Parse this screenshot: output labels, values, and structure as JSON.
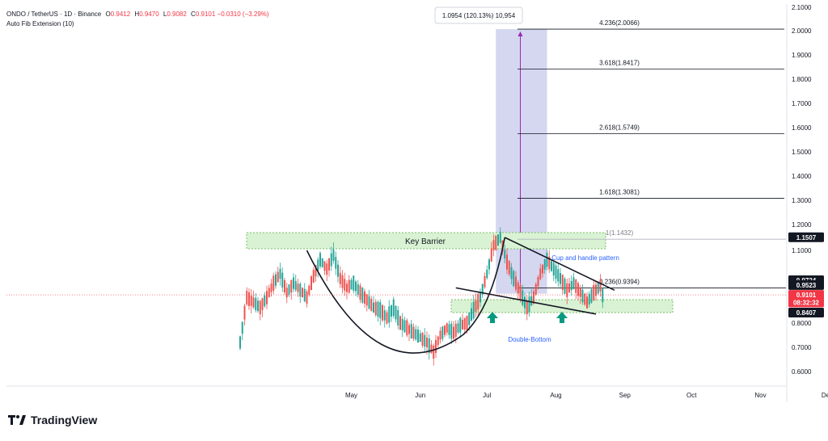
{
  "header": {
    "symbol": "ONDO / TetherUS · 1D · Binance",
    "open_label": "O",
    "open": "0.9412",
    "high_label": "H",
    "high": "0.9470",
    "low_label": "L",
    "low": "0.9082",
    "close_label": "C",
    "close": "0.9101",
    "change": "−0.0310 (−3.29%)",
    "indicator": "Auto Fib Extension (10)"
  },
  "logo": {
    "text": "TradingView"
  },
  "colors": {
    "up": "#26a69a",
    "down": "#ef5350",
    "price_label": "#f23645",
    "fib_line": "#131722",
    "zone_fill": "#d9f2d3",
    "zone_stroke": "#7bbf6a",
    "measure_fill": "#c5cae9",
    "measure_line": "#9c27b0",
    "annotation_text": "#2962ff",
    "arrow": "#089981"
  },
  "chart_data": {
    "type": "candlestick",
    "y_axis": {
      "min": 0.5,
      "max": 2.1,
      "side": "right",
      "ticks": [
        "2.1000",
        "2.0000",
        "1.9000",
        "1.8000",
        "1.7000",
        "1.6000",
        "1.5000",
        "1.4000",
        "1.3000",
        "1.2000",
        "1.1000",
        "0.8000",
        "0.7000",
        "0.6000"
      ]
    },
    "x_axis": {
      "labels": [
        {
          "text": "May",
          "day": 30
        },
        {
          "text": "Jun",
          "day": 61
        },
        {
          "text": "Jul",
          "day": 91
        },
        {
          "text": "Aug",
          "day": 122
        },
        {
          "text": "Sep",
          "day": 153
        },
        {
          "text": "Oct",
          "day": 183
        },
        {
          "text": "Nov",
          "day": 214
        },
        {
          "text": "Dec",
          "day": 244
        }
      ]
    },
    "price_labels": [
      {
        "text": "1.1507",
        "value": 1.1507,
        "style": "dark"
      },
      {
        "text": "0.9724",
        "value": 0.9724,
        "style": "dark"
      },
      {
        "text": "0.9523",
        "value": 0.9523,
        "style": "dark"
      },
      {
        "text": "0.9101",
        "value": 0.9101,
        "style": "red"
      },
      {
        "text": "08:32:32",
        "value": 0.88,
        "style": "red"
      },
      {
        "text": "0.8407",
        "value": 0.8407,
        "style": "dark"
      }
    ],
    "fib_levels": [
      {
        "label": "4.236(2.0066)",
        "value": 2.0066
      },
      {
        "label": "3.618(1.8417)",
        "value": 1.8417
      },
      {
        "label": "2.618(1.5749)",
        "value": 1.5749
      },
      {
        "label": "1.618(1.3081)",
        "value": 1.3081
      },
      {
        "label": "1(1.1432)",
        "value": 1.1432
      },
      {
        "label": "0.236(0.9394)",
        "value": 0.9394
      }
    ],
    "annotations": {
      "key_barrier": "Key Barrier",
      "cup_handle": "Cup and handle pattern",
      "double_bottom": "Double-Bottom",
      "measure": "1.0954 (120.13%) 10,954"
    },
    "candle_path": [
      [
        0,
        0.72
      ],
      [
        3,
        0.9
      ],
      [
        6,
        0.88
      ],
      [
        9,
        0.86
      ],
      [
        12,
        0.9
      ],
      [
        15,
        0.96
      ],
      [
        18,
        1.0
      ],
      [
        21,
        0.92
      ],
      [
        24,
        0.96
      ],
      [
        27,
        0.93
      ],
      [
        30,
        0.9
      ],
      [
        33,
        0.99
      ],
      [
        36,
        1.06
      ],
      [
        39,
        1.02
      ],
      [
        42,
        1.08
      ],
      [
        45,
        0.98
      ],
      [
        48,
        0.94
      ],
      [
        51,
        0.96
      ],
      [
        54,
        0.92
      ],
      [
        57,
        0.89
      ],
      [
        60,
        0.86
      ],
      [
        63,
        0.85
      ],
      [
        66,
        0.82
      ],
      [
        69,
        0.86
      ],
      [
        72,
        0.8
      ],
      [
        75,
        0.78
      ],
      [
        78,
        0.76
      ],
      [
        81,
        0.74
      ],
      [
        84,
        0.72
      ],
      [
        87,
        0.68
      ],
      [
        90,
        0.75
      ],
      [
        93,
        0.78
      ],
      [
        96,
        0.76
      ],
      [
        99,
        0.79
      ],
      [
        102,
        0.8
      ],
      [
        105,
        0.85
      ],
      [
        108,
        0.9
      ],
      [
        111,
        1.0
      ],
      [
        114,
        1.12
      ],
      [
        117,
        1.15
      ],
      [
        120,
        1.05
      ],
      [
        123,
        0.98
      ],
      [
        126,
        0.92
      ],
      [
        129,
        0.86
      ],
      [
        132,
        0.9
      ],
      [
        135,
        1.0
      ],
      [
        138,
        1.06
      ],
      [
        141,
        1.02
      ],
      [
        144,
        0.98
      ],
      [
        147,
        0.93
      ],
      [
        150,
        0.96
      ],
      [
        153,
        0.92
      ],
      [
        156,
        0.88
      ],
      [
        159,
        0.92
      ],
      [
        162,
        0.95
      ],
      [
        163,
        0.91
      ]
    ]
  }
}
